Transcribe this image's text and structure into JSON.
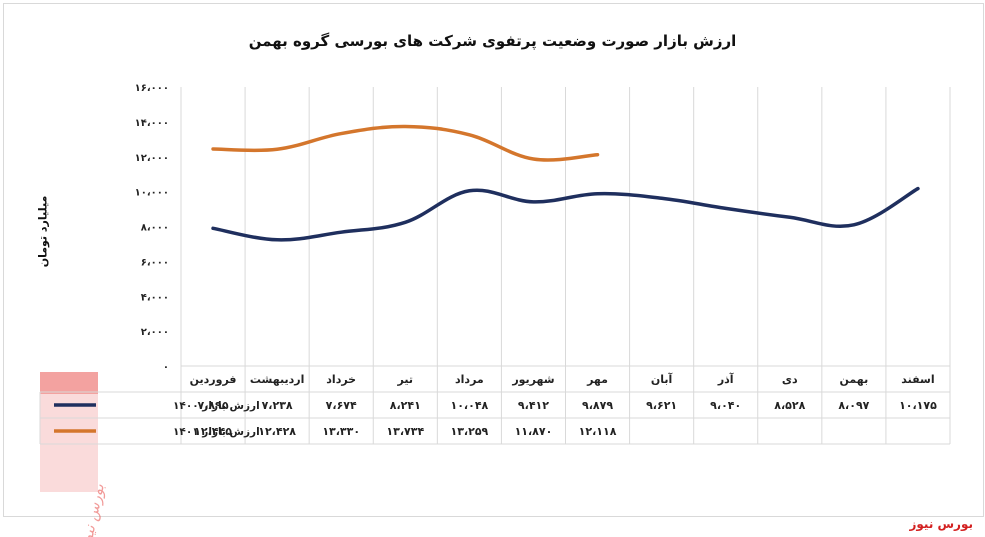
{
  "chart_data": {
    "type": "line",
    "title": "ارزش بازار صورت وضعیت پرتفوی شرکت های بورسی گروه بهمن",
    "ylabel": "میلیارد تومان",
    "xlabel": "",
    "ylim": [
      0,
      16000
    ],
    "yticks": [
      0,
      2000,
      4000,
      6000,
      8000,
      10000,
      12000,
      14000,
      16000
    ],
    "ytick_labels": [
      "۰",
      "۲،۰۰۰",
      "۴،۰۰۰",
      "۶،۰۰۰",
      "۸،۰۰۰",
      "۱۰،۰۰۰",
      "۱۲،۰۰۰",
      "۱۴،۰۰۰",
      "۱۶،۰۰۰"
    ],
    "grid": "vertical category lines",
    "categories": [
      "فروردین",
      "اردیبهشت",
      "خرداد",
      "تیر",
      "مرداد",
      "شهریور",
      "مهر",
      "آبان",
      "آذر",
      "دی",
      "بهمن",
      "اسفند"
    ],
    "series": [
      {
        "name": "ارزش بازار ۱۴۰۰",
        "color": "#1f2f5e",
        "values": [
          7895,
          7238,
          7674,
          8241,
          10048,
          9412,
          9879,
          9621,
          9040,
          8528,
          8097,
          10175
        ],
        "labels": [
          "۷،۸۹۵",
          "۷،۲۳۸",
          "۷،۶۷۴",
          "۸،۲۴۱",
          "۱۰،۰۴۸",
          "۹،۴۱۲",
          "۹،۸۷۹",
          "۹،۶۲۱",
          "۹،۰۴۰",
          "۸،۵۲۸",
          "۸،۰۹۷",
          "۱۰،۱۷۵"
        ]
      },
      {
        "name": "ارزش بازار ۱۴۰۱",
        "color": "#d4762c",
        "values": [
          12445,
          12428,
          13330,
          13734,
          13259,
          11870,
          12118,
          null,
          null,
          null,
          null,
          null
        ],
        "labels": [
          "۱۲،۴۴۵",
          "۱۲،۴۲۸",
          "۱۳،۳۳۰",
          "۱۳،۷۳۴",
          "۱۳،۲۵۹",
          "۱۱،۸۷۰",
          "۱۲،۱۱۸",
          "",
          "",
          "",
          "",
          ""
        ]
      }
    ],
    "legend": "data table rows below chart"
  },
  "source_label": "بورس نیوز",
  "watermark_text": "بورس نیوز",
  "colors": {
    "watermark": "#e53935",
    "grid": "#d9d9d9"
  }
}
